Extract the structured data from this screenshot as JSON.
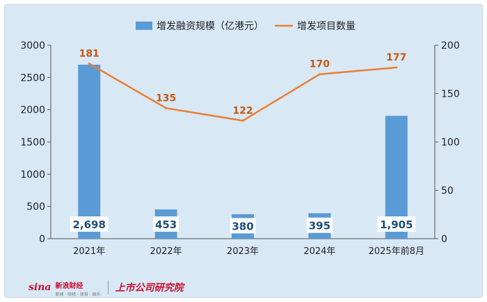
{
  "chart_data": {
    "type": "bar+line",
    "categories": [
      "2021年",
      "2022年",
      "2023年",
      "2024年",
      "2025年前8月"
    ],
    "series": [
      {
        "name": "增发融资规模（亿港元）",
        "type": "bar",
        "axis": "left",
        "values": [
          2698,
          453,
          380,
          395,
          1905
        ],
        "labels": [
          "2,698",
          "453",
          "380",
          "395",
          "1,905"
        ]
      },
      {
        "name": "增发项目数量",
        "type": "line",
        "axis": "right",
        "values": [
          181,
          135,
          122,
          170,
          177
        ],
        "labels": [
          "181",
          "135",
          "122",
          "170",
          "177"
        ]
      }
    ],
    "y_left": {
      "min": 0,
      "max": 3000,
      "ticks": [
        0,
        500,
        1000,
        1500,
        2000,
        2500,
        3000
      ]
    },
    "y_right": {
      "min": 0,
      "max": 200,
      "ticks": [
        0,
        50,
        100,
        150,
        200
      ]
    },
    "legend_position": "top-center",
    "grid": false,
    "colors": {
      "bar": "#5b9bd5",
      "line": "#ed7d31",
      "line_label": "#c55a11",
      "background": "#d9e8f5"
    }
  },
  "footer": {
    "sina_logo": "sina",
    "sina_name": "新浪财经",
    "sina_sub": "新闻 · 财经 · 体育 · 娱乐",
    "institute": "上市公司研究院"
  }
}
